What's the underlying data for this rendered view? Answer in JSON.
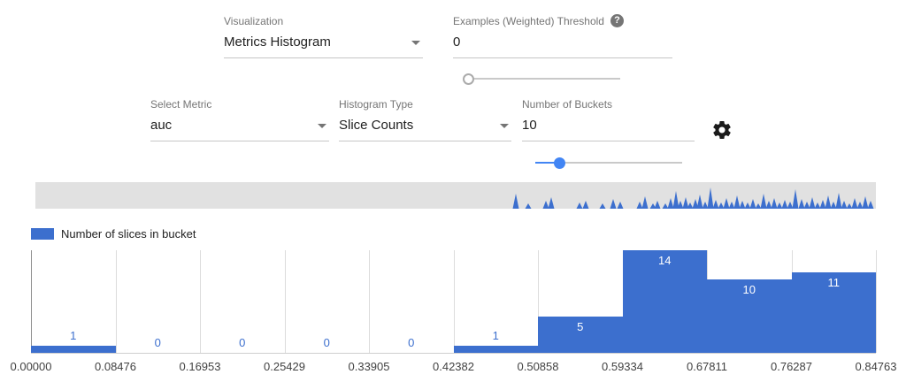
{
  "controls": {
    "visualization": {
      "label": "Visualization",
      "value": "Metrics Histogram"
    },
    "threshold": {
      "label": "Examples (Weighted) Threshold",
      "help_glyph": "?",
      "value": "0",
      "slider_percent": 2
    },
    "metric": {
      "label": "Select Metric",
      "value": "auc"
    },
    "histogram_type": {
      "label": "Histogram Type",
      "value": "Slice Counts"
    },
    "num_buckets": {
      "label": "Number of Buckets",
      "value": "10",
      "slider_percent": 16
    }
  },
  "icons": {
    "help": "question-mark-icon",
    "settings": "gear-icon",
    "dropdown": "chevron-down-icon"
  },
  "colors": {
    "accent_blue": "#4285f4",
    "bar_blue": "#3c6fce",
    "minimap_bg": "#e1e1e1",
    "label_gray": "#757575"
  },
  "legend": {
    "label": "Number of slices in bucket",
    "color": "#3c6fce"
  },
  "chart_data": {
    "type": "bar",
    "title": "",
    "xlabel": "",
    "ylabel": "",
    "series_name": "Number of slices in bucket",
    "bucket_edges": [
      "0.00000",
      "0.08476",
      "0.16953",
      "0.25429",
      "0.33905",
      "0.42382",
      "0.50858",
      "0.59334",
      "0.67811",
      "0.76287",
      "0.84763"
    ],
    "values": [
      1,
      0,
      0,
      0,
      0,
      1,
      5,
      14,
      10,
      11
    ],
    "ylim": [
      0,
      14
    ],
    "bar_color": "#3c6fce",
    "grid": true,
    "legend_position": "top-left"
  },
  "minimap": {
    "spike_color": "#3c6fce",
    "spikes": [
      [
        543,
        17
      ],
      [
        557,
        6
      ],
      [
        577,
        9
      ],
      [
        583,
        13
      ],
      [
        615,
        7
      ],
      [
        622,
        9
      ],
      [
        641,
        6
      ],
      [
        653,
        11
      ],
      [
        661,
        8
      ],
      [
        683,
        8
      ],
      [
        689,
        14
      ],
      [
        698,
        6
      ],
      [
        703,
        9
      ],
      [
        712,
        6
      ],
      [
        718,
        12
      ],
      [
        724,
        20
      ],
      [
        729,
        9
      ],
      [
        735,
        13
      ],
      [
        740,
        7
      ],
      [
        746,
        11
      ],
      [
        751,
        16
      ],
      [
        757,
        8
      ],
      [
        763,
        24
      ],
      [
        769,
        10
      ],
      [
        775,
        7
      ],
      [
        781,
        12
      ],
      [
        787,
        8
      ],
      [
        793,
        15
      ],
      [
        799,
        9
      ],
      [
        805,
        7
      ],
      [
        811,
        11
      ],
      [
        817,
        6
      ],
      [
        823,
        17
      ],
      [
        829,
        9
      ],
      [
        835,
        12
      ],
      [
        841,
        7
      ],
      [
        847,
        10
      ],
      [
        853,
        8
      ],
      [
        859,
        22
      ],
      [
        866,
        11
      ],
      [
        872,
        8
      ],
      [
        878,
        13
      ],
      [
        884,
        7
      ],
      [
        890,
        10
      ],
      [
        896,
        15
      ],
      [
        902,
        8
      ],
      [
        908,
        18
      ],
      [
        914,
        9
      ],
      [
        920,
        6
      ],
      [
        926,
        12
      ],
      [
        932,
        8
      ],
      [
        938,
        14
      ],
      [
        944,
        9
      ]
    ]
  }
}
